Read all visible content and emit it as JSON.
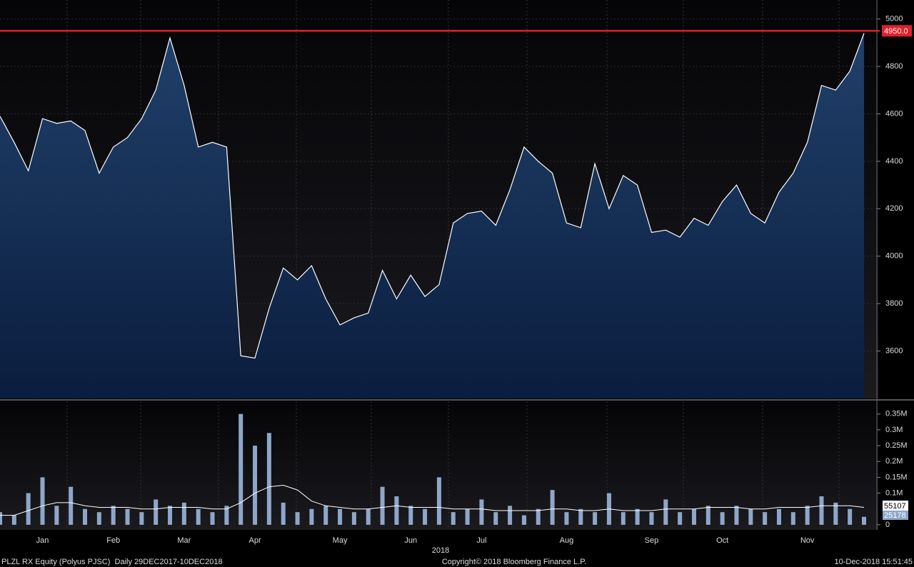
{
  "chart_data": [
    {
      "type": "area",
      "color": "#ffffff",
      "values": [
        4590,
        4480,
        4360,
        4580,
        4560,
        4570,
        4530,
        4350,
        4460,
        4500,
        4580,
        4700,
        4920,
        4720,
        4460,
        4480,
        4460,
        3580,
        3570,
        3780,
        3950,
        3900,
        3960,
        3820,
        3710,
        3740,
        3760,
        3940,
        3820,
        3920,
        3830,
        3880,
        4140,
        4180,
        4190,
        4130,
        4280,
        4460,
        4400,
        4350,
        4140,
        4120,
        4390,
        4200,
        4340,
        4300,
        4100,
        4110,
        4080,
        4160,
        4130,
        4230,
        4300,
        4180,
        4140,
        4270,
        4350,
        4480,
        4720,
        4700,
        4780,
        4940
      ],
      "ylim": [
        3400,
        5080
      ],
      "yticks": [
        3600,
        3800,
        4000,
        4200,
        4400,
        4600,
        4800,
        5000
      ],
      "grid": true,
      "annotations": [
        {
          "value": 4950,
          "label": "4950.0",
          "color": "#e0202a"
        }
      ]
    },
    {
      "type": "bar",
      "categories": [
        null,
        null,
        null,
        "Jan",
        null,
        null,
        null,
        null,
        "Feb",
        null,
        null,
        null,
        null,
        "Mar",
        null,
        null,
        null,
        null,
        "Apr",
        null,
        null,
        null,
        null,
        null,
        "May",
        null,
        null,
        null,
        null,
        "Jun",
        null,
        null,
        null,
        null,
        "Jul",
        null,
        null,
        null,
        null,
        null,
        "Aug",
        null,
        null,
        null,
        null,
        null,
        "Sep",
        null,
        null,
        null,
        null,
        "Oct",
        null,
        null,
        null,
        null,
        null,
        "Nov",
        null,
        null,
        null,
        null
      ],
      "series": [
        {
          "type": "bar",
          "color": "#8ea6c9",
          "values": [
            40000,
            30000,
            100000,
            150000,
            60000,
            120000,
            50000,
            40000,
            60000,
            50000,
            40000,
            80000,
            60000,
            70000,
            50000,
            40000,
            60000,
            350000,
            250000,
            290000,
            70000,
            40000,
            50000,
            60000,
            50000,
            40000,
            50000,
            120000,
            90000,
            60000,
            50000,
            150000,
            40000,
            50000,
            80000,
            40000,
            60000,
            30000,
            50000,
            110000,
            40000,
            50000,
            40000,
            100000,
            40000,
            50000,
            40000,
            80000,
            40000,
            50000,
            60000,
            40000,
            60000,
            50000,
            40000,
            50000,
            40000,
            60000,
            90000,
            70000,
            50000,
            25178
          ]
        },
        {
          "type": "line",
          "color": "#ffffff",
          "values": [
            30000,
            30000,
            45000,
            60000,
            70000,
            70000,
            60000,
            55000,
            55000,
            55000,
            50000,
            50000,
            55000,
            55000,
            55000,
            50000,
            50000,
            70000,
            100000,
            120000,
            125000,
            110000,
            75000,
            60000,
            55000,
            50000,
            50000,
            55000,
            60000,
            55000,
            55000,
            55000,
            50000,
            50000,
            50000,
            45000,
            45000,
            45000,
            45000,
            50000,
            50000,
            45000,
            45000,
            50000,
            45000,
            45000,
            45000,
            50000,
            50000,
            50000,
            55000,
            55000,
            55000,
            50000,
            50000,
            55000,
            55000,
            55000,
            60000,
            60000,
            60000,
            55107
          ]
        }
      ],
      "ylim": [
        -16000,
        390000
      ],
      "yticks": [
        0,
        {
          "value": 100000,
          "label": "0.1M"
        },
        {
          "value": 150000,
          "label": "0.15M"
        },
        {
          "value": 200000,
          "label": "0.2M"
        },
        {
          "value": 250000,
          "label": "0.25M"
        },
        {
          "value": 300000,
          "label": "0.3M"
        },
        {
          "value": 350000,
          "label": "0.35M"
        }
      ],
      "xlabel": "2018"
    }
  ],
  "footer": {
    "left": "PLZL RX Equity (Polyus PJSC)  Daily 29DEC2017-10DEC2018",
    "center": "Copyright© 2018 Bloomberg Finance L.P.",
    "right": "10-Dec-2018 15:51:45"
  }
}
